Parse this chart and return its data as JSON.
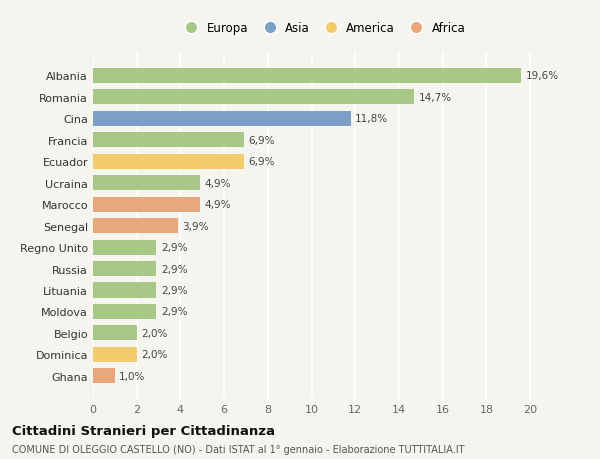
{
  "categories": [
    "Albania",
    "Romania",
    "Cina",
    "Francia",
    "Ecuador",
    "Ucraina",
    "Marocco",
    "Senegal",
    "Regno Unito",
    "Russia",
    "Lituania",
    "Moldova",
    "Belgio",
    "Dominica",
    "Ghana"
  ],
  "values": [
    19.6,
    14.7,
    11.8,
    6.9,
    6.9,
    4.9,
    4.9,
    3.9,
    2.9,
    2.9,
    2.9,
    2.9,
    2.0,
    2.0,
    1.0
  ],
  "labels": [
    "19,6%",
    "14,7%",
    "11,8%",
    "6,9%",
    "6,9%",
    "4,9%",
    "4,9%",
    "3,9%",
    "2,9%",
    "2,9%",
    "2,9%",
    "2,9%",
    "2,0%",
    "2,0%",
    "1,0%"
  ],
  "continent": [
    "Europa",
    "Europa",
    "Asia",
    "Europa",
    "America",
    "Europa",
    "Africa",
    "Africa",
    "Europa",
    "Europa",
    "Europa",
    "Europa",
    "Europa",
    "America",
    "Africa"
  ],
  "colors": {
    "Europa": "#a8c888",
    "Asia": "#7b9fc7",
    "America": "#f2cb6a",
    "Africa": "#e8a87c"
  },
  "legend_order": [
    "Europa",
    "Asia",
    "America",
    "Africa"
  ],
  "xlim": [
    0,
    21
  ],
  "xticks": [
    0,
    2,
    4,
    6,
    8,
    10,
    12,
    14,
    16,
    18,
    20
  ],
  "title": "Cittadini Stranieri per Cittadinanza",
  "subtitle": "COMUNE DI OLEGGIO CASTELLO (NO) - Dati ISTAT al 1° gennaio - Elaborazione TUTTITALIA.IT",
  "background_color": "#f5f4ef",
  "grid_color": "#ffffff",
  "bar_height": 0.7
}
